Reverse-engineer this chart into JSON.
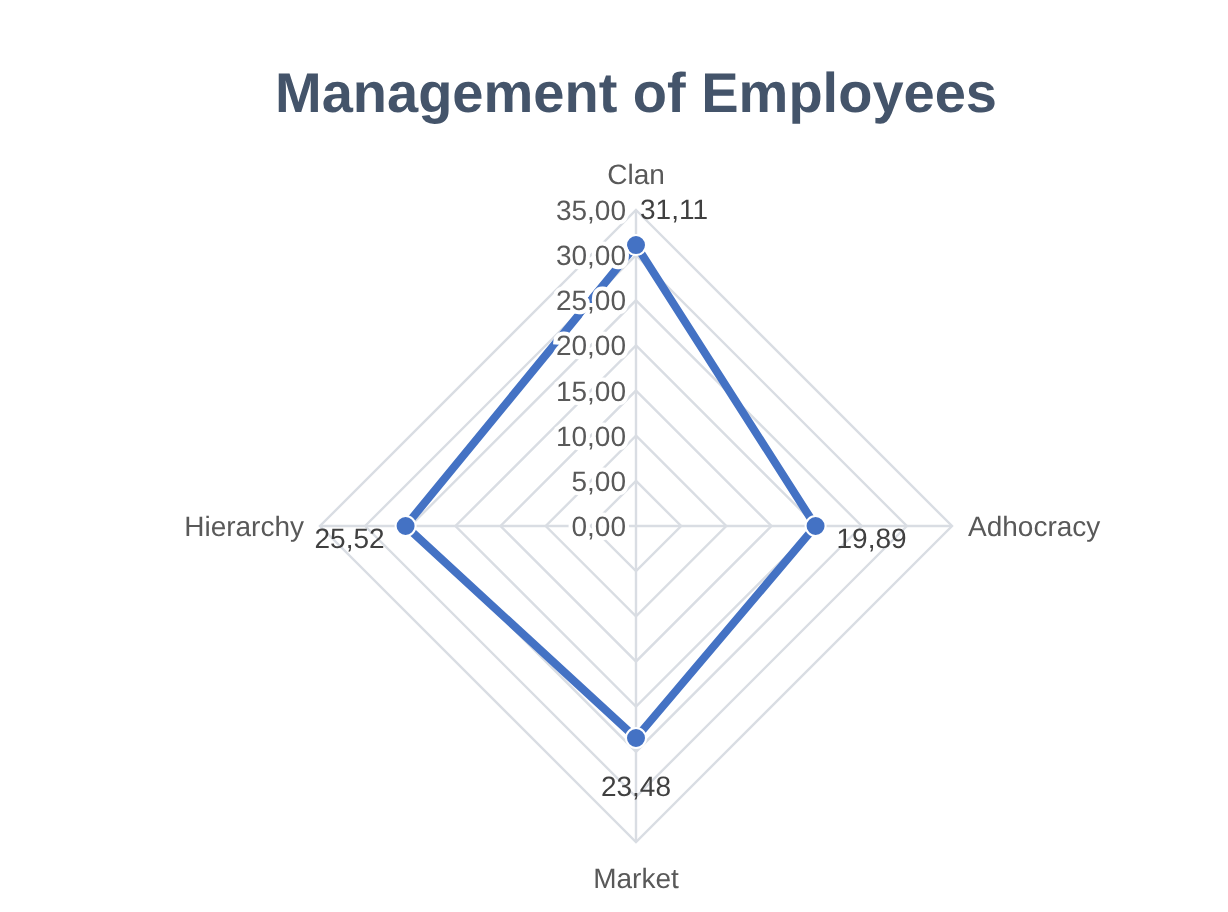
{
  "chart_data": {
    "type": "radar",
    "title": "Management of Employees",
    "categories": [
      "Clan",
      "Adhocracy",
      "Market",
      "Hierarchy"
    ],
    "series": [
      {
        "color": "#4472c4",
        "values": [
          31.11,
          19.89,
          23.48,
          25.52
        ],
        "value_labels": [
          "31,11",
          "19,89",
          "23,48",
          "25,52"
        ]
      }
    ],
    "ylim": [
      0,
      35
    ],
    "yticks": [
      {
        "value": 0,
        "label": "0,00"
      },
      {
        "value": 5,
        "label": "5,00"
      },
      {
        "value": 10,
        "label": "10,00"
      },
      {
        "value": 15,
        "label": "15,00"
      },
      {
        "value": 20,
        "label": "20,00"
      },
      {
        "value": 25,
        "label": "25,00"
      },
      {
        "value": 30,
        "label": "30,00"
      },
      {
        "value": 35,
        "label": "35,00"
      }
    ],
    "grid": true,
    "marker": "circle",
    "line_style": "solid"
  }
}
